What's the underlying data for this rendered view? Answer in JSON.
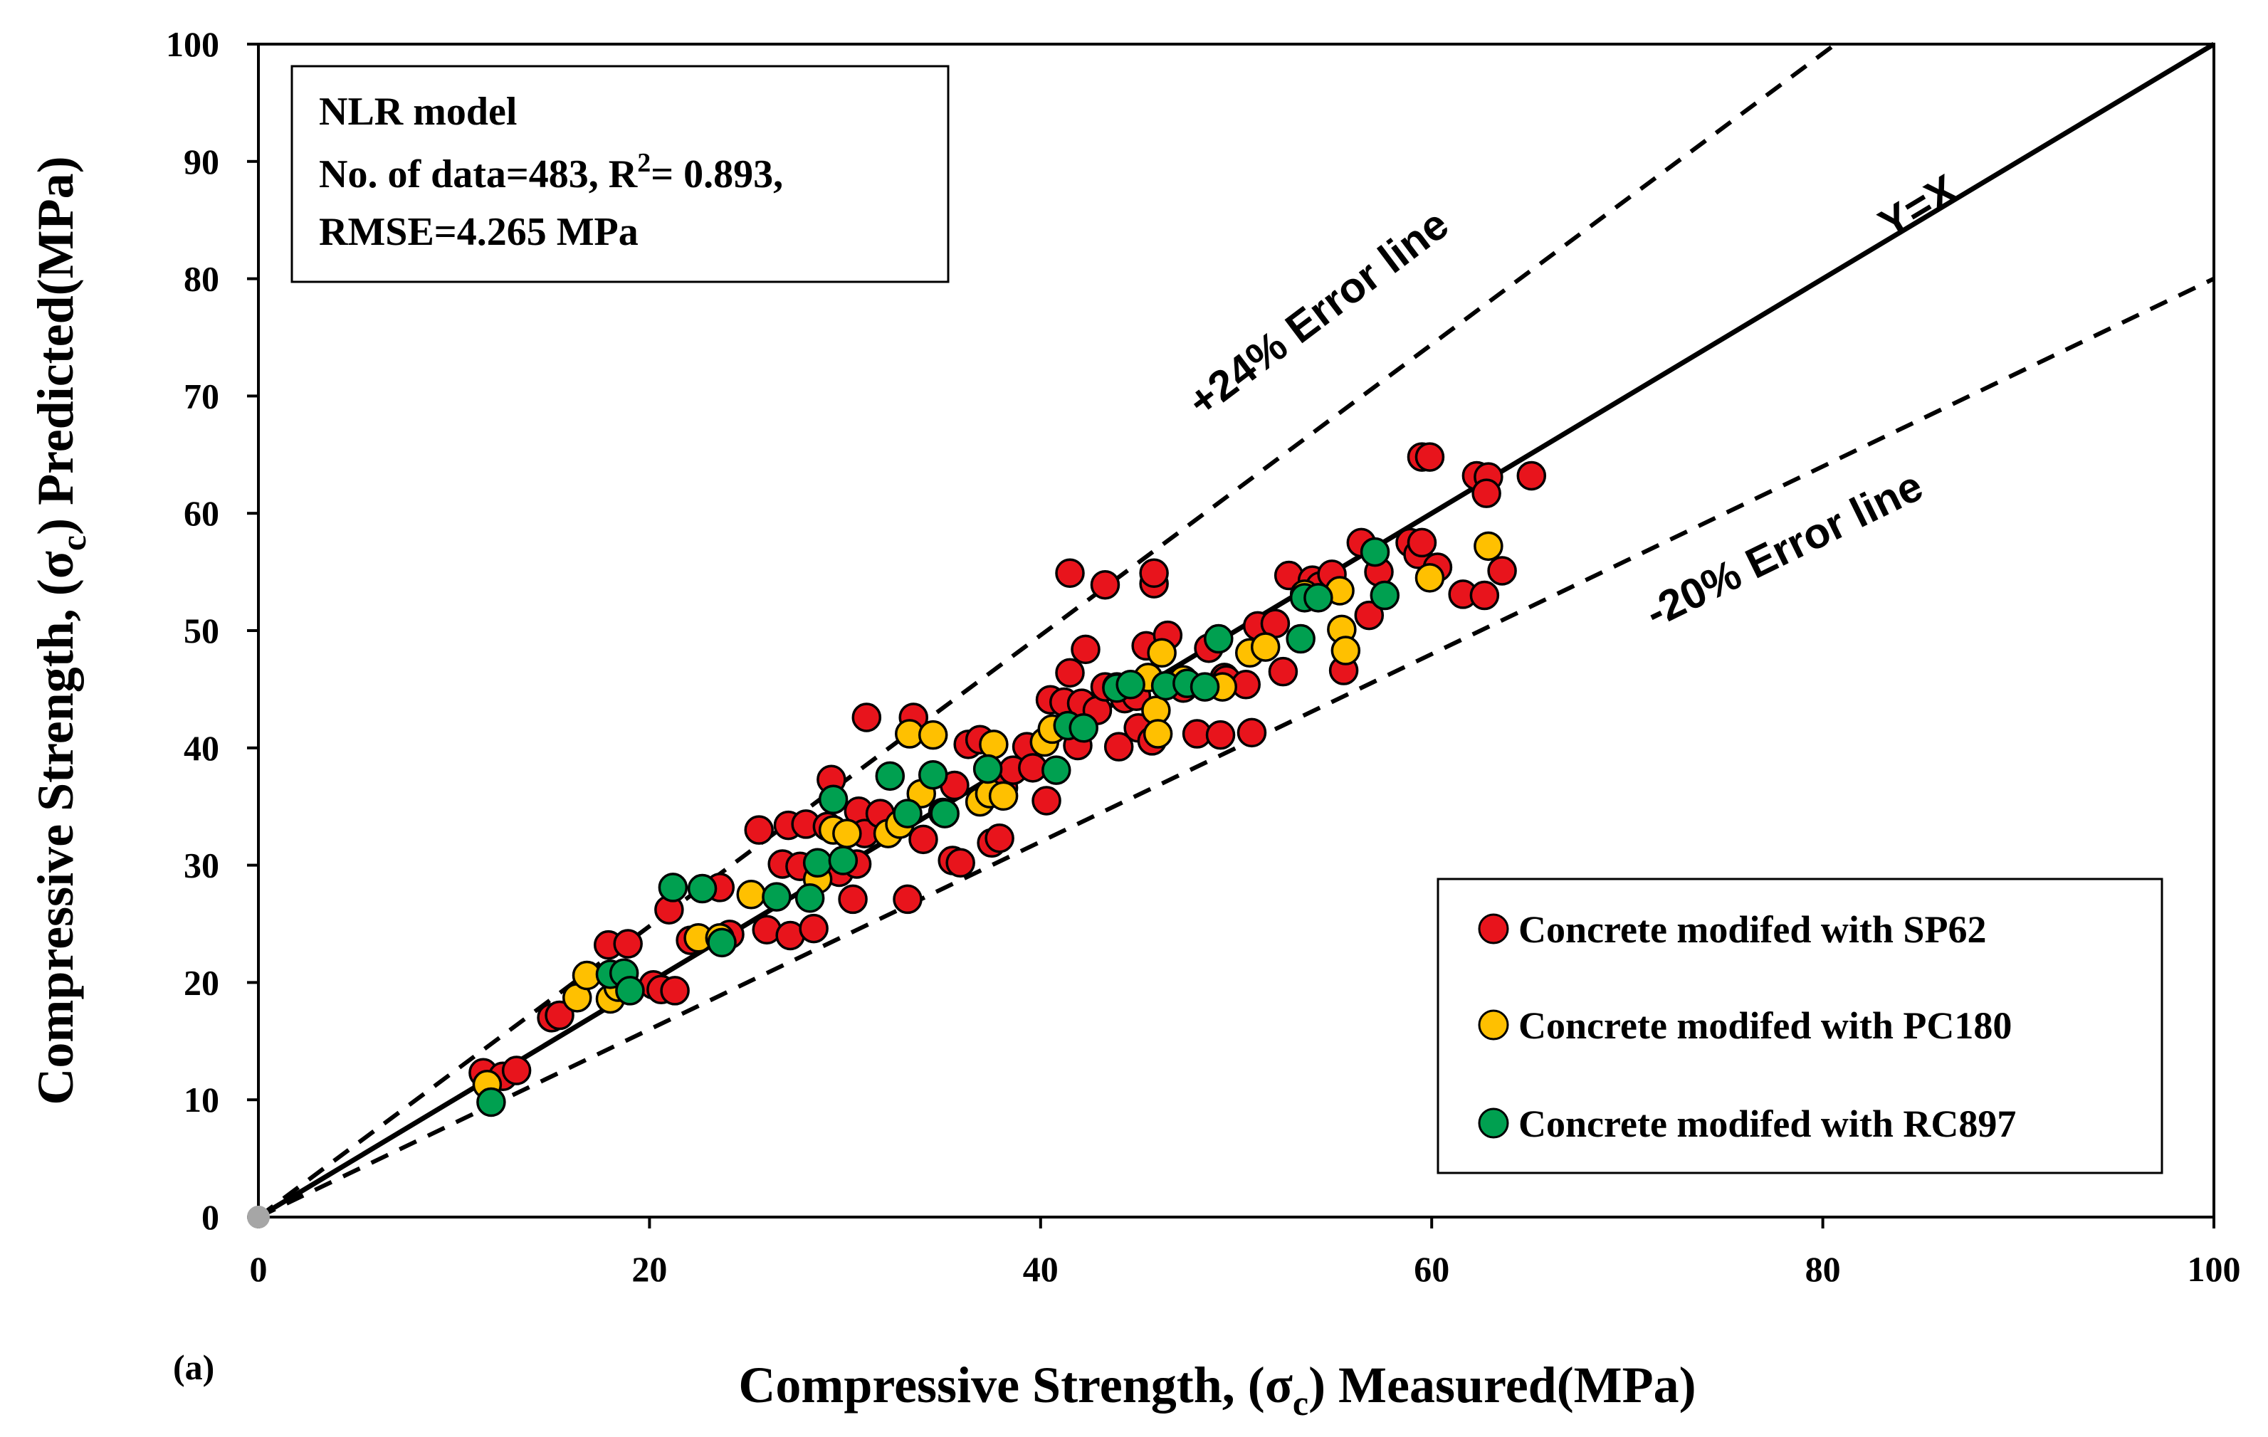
{
  "chart_data": {
    "type": "scatter",
    "panel_label": "(a)",
    "xlabel": {
      "main": "Compressive Strength, (σ",
      "sub": "c",
      "tail": ") Measured(MPa)"
    },
    "ylabel": {
      "main": "Compressive Strength, (σ",
      "sub": "c",
      "tail": ") Predicted(MPa)"
    },
    "xlim": [
      0,
      100
    ],
    "ylim": [
      0,
      100
    ],
    "xticks": [
      0,
      20,
      40,
      60,
      80,
      100
    ],
    "yticks": [
      0,
      10,
      20,
      30,
      40,
      50,
      60,
      70,
      80,
      90,
      100
    ],
    "grid": false,
    "legend_position": "bottom-right",
    "info_box": {
      "line1": "NLR model",
      "line2_pre": "No. of data=483, R",
      "line2_sup": "2",
      "line2_post": "= 0.893,",
      "line3": "RMSE=4.265 MPa"
    },
    "reference_lines": [
      {
        "label": "Y=X",
        "slope": 1.0,
        "style": "solid"
      },
      {
        "label": "+24% Error line",
        "slope": 1.24,
        "style": "dashed"
      },
      {
        "label": "-20% Error line",
        "slope": 0.8,
        "style": "dashed"
      }
    ],
    "origin_point": [
      0,
      0
    ],
    "series": [
      {
        "name": "Concrete modifed with SP62",
        "color": "#e8141c",
        "points": [
          [
            11.5,
            12.3
          ],
          [
            12.5,
            12.0
          ],
          [
            13.2,
            12.5
          ],
          [
            15.0,
            17.0
          ],
          [
            15.4,
            17.2
          ],
          [
            17.9,
            23.2
          ],
          [
            18.9,
            23.3
          ],
          [
            20.2,
            19.8
          ],
          [
            20.6,
            19.4
          ],
          [
            21.3,
            19.3
          ],
          [
            21.0,
            26.2
          ],
          [
            22.1,
            23.6
          ],
          [
            23.6,
            28.1
          ],
          [
            24.1,
            24.1
          ],
          [
            25.6,
            33.0
          ],
          [
            26.0,
            24.5
          ],
          [
            26.8,
            30.1
          ],
          [
            27.1,
            33.4
          ],
          [
            27.2,
            24.0
          ],
          [
            27.7,
            29.9
          ],
          [
            28.0,
            33.5
          ],
          [
            28.4,
            24.6
          ],
          [
            29.1,
            33.3
          ],
          [
            29.3,
            37.3
          ],
          [
            29.7,
            29.4
          ],
          [
            30.4,
            27.1
          ],
          [
            30.6,
            30.1
          ],
          [
            30.7,
            34.6
          ],
          [
            31.0,
            32.7
          ],
          [
            31.1,
            42.6
          ],
          [
            31.8,
            34.4
          ],
          [
            33.2,
            27.1
          ],
          [
            33.5,
            42.6
          ],
          [
            34.0,
            32.2
          ],
          [
            35.0,
            34.5
          ],
          [
            35.5,
            30.4
          ],
          [
            35.9,
            30.2
          ],
          [
            35.6,
            36.8
          ],
          [
            36.3,
            40.3
          ],
          [
            36.9,
            40.7
          ],
          [
            37.5,
            31.9
          ],
          [
            37.9,
            32.3
          ],
          [
            38.1,
            36.6
          ],
          [
            38.6,
            38.1
          ],
          [
            39.3,
            40.1
          ],
          [
            39.6,
            38.3
          ],
          [
            40.3,
            35.5
          ],
          [
            40.5,
            44.1
          ],
          [
            41.2,
            43.9
          ],
          [
            41.5,
            46.4
          ],
          [
            41.5,
            54.9
          ],
          [
            41.9,
            40.2
          ],
          [
            42.1,
            43.8
          ],
          [
            42.3,
            48.4
          ],
          [
            42.9,
            43.2
          ],
          [
            43.3,
            45.2
          ],
          [
            43.3,
            53.9
          ],
          [
            44.0,
            40.1
          ],
          [
            44.3,
            44.2
          ],
          [
            44.9,
            44.4
          ],
          [
            45.0,
            41.7
          ],
          [
            45.4,
            48.7
          ],
          [
            45.7,
            40.6
          ],
          [
            45.8,
            54.0
          ],
          [
            45.8,
            54.9
          ],
          [
            46.5,
            49.6
          ],
          [
            47.3,
            45.1
          ],
          [
            48.0,
            41.2
          ],
          [
            48.6,
            48.5
          ],
          [
            49.2,
            41.1
          ],
          [
            49.4,
            46.0
          ],
          [
            49.5,
            45.8
          ],
          [
            50.5,
            45.4
          ],
          [
            50.8,
            41.3
          ],
          [
            51.1,
            50.4
          ],
          [
            52.0,
            50.6
          ],
          [
            52.4,
            46.5
          ],
          [
            52.7,
            54.7
          ],
          [
            53.9,
            54.3
          ],
          [
            54.3,
            53.8
          ],
          [
            54.9,
            54.8
          ],
          [
            55.5,
            46.6
          ],
          [
            56.4,
            57.5
          ],
          [
            56.8,
            51.3
          ],
          [
            57.3,
            55.0
          ],
          [
            58.9,
            57.5
          ],
          [
            59.3,
            56.5
          ],
          [
            59.5,
            64.8
          ],
          [
            59.9,
            64.8
          ],
          [
            59.5,
            57.5
          ],
          [
            60.3,
            55.4
          ],
          [
            61.6,
            53.1
          ],
          [
            62.3,
            63.2
          ],
          [
            62.9,
            63.1
          ],
          [
            62.7,
            53.0
          ],
          [
            62.8,
            61.7
          ],
          [
            63.6,
            55.1
          ],
          [
            65.1,
            63.2
          ]
        ]
      },
      {
        "name": "Concrete modifed with PC180",
        "color": "#ffc000",
        "points": [
          [
            11.7,
            11.3
          ],
          [
            16.3,
            18.7
          ],
          [
            16.8,
            20.6
          ],
          [
            18.0,
            18.6
          ],
          [
            18.4,
            19.6
          ],
          [
            22.5,
            23.8
          ],
          [
            23.6,
            23.8
          ],
          [
            25.2,
            27.5
          ],
          [
            28.6,
            28.8
          ],
          [
            29.4,
            33.0
          ],
          [
            30.1,
            32.7
          ],
          [
            32.2,
            32.7
          ],
          [
            32.8,
            33.5
          ],
          [
            33.3,
            41.2
          ],
          [
            33.9,
            36.1
          ],
          [
            34.5,
            41.1
          ],
          [
            36.9,
            35.4
          ],
          [
            37.4,
            36.1
          ],
          [
            37.6,
            40.3
          ],
          [
            38.1,
            35.9
          ],
          [
            40.2,
            40.5
          ],
          [
            40.6,
            41.6
          ],
          [
            43.9,
            45.2
          ],
          [
            45.5,
            46.0
          ],
          [
            45.9,
            43.2
          ],
          [
            46.0,
            41.2
          ],
          [
            46.2,
            48.1
          ],
          [
            47.3,
            45.8
          ],
          [
            49.3,
            45.2
          ],
          [
            50.7,
            48.1
          ],
          [
            51.5,
            48.6
          ],
          [
            53.5,
            53.1
          ],
          [
            55.3,
            53.4
          ],
          [
            55.4,
            50.1
          ],
          [
            55.6,
            48.3
          ],
          [
            59.9,
            54.5
          ],
          [
            62.9,
            57.2
          ]
        ]
      },
      {
        "name": "Concrete modifed with RC897",
        "color": "#00a050",
        "points": [
          [
            11.9,
            9.8
          ],
          [
            18.0,
            20.7
          ],
          [
            18.7,
            20.8
          ],
          [
            19.0,
            19.3
          ],
          [
            21.2,
            28.1
          ],
          [
            22.7,
            28.0
          ],
          [
            23.7,
            23.4
          ],
          [
            26.5,
            27.3
          ],
          [
            28.2,
            27.2
          ],
          [
            28.6,
            30.2
          ],
          [
            29.4,
            35.6
          ],
          [
            29.9,
            30.4
          ],
          [
            32.3,
            37.6
          ],
          [
            33.2,
            34.4
          ],
          [
            34.5,
            37.7
          ],
          [
            35.1,
            34.4
          ],
          [
            37.3,
            38.2
          ],
          [
            40.8,
            38.1
          ],
          [
            41.4,
            41.9
          ],
          [
            42.2,
            41.7
          ],
          [
            43.9,
            45.1
          ],
          [
            44.6,
            45.4
          ],
          [
            46.4,
            45.3
          ],
          [
            47.5,
            45.5
          ],
          [
            48.4,
            45.2
          ],
          [
            49.1,
            49.3
          ],
          [
            53.3,
            49.3
          ],
          [
            53.5,
            52.8
          ],
          [
            54.2,
            52.8
          ],
          [
            57.1,
            56.7
          ],
          [
            57.6,
            53.0
          ]
        ]
      }
    ]
  }
}
